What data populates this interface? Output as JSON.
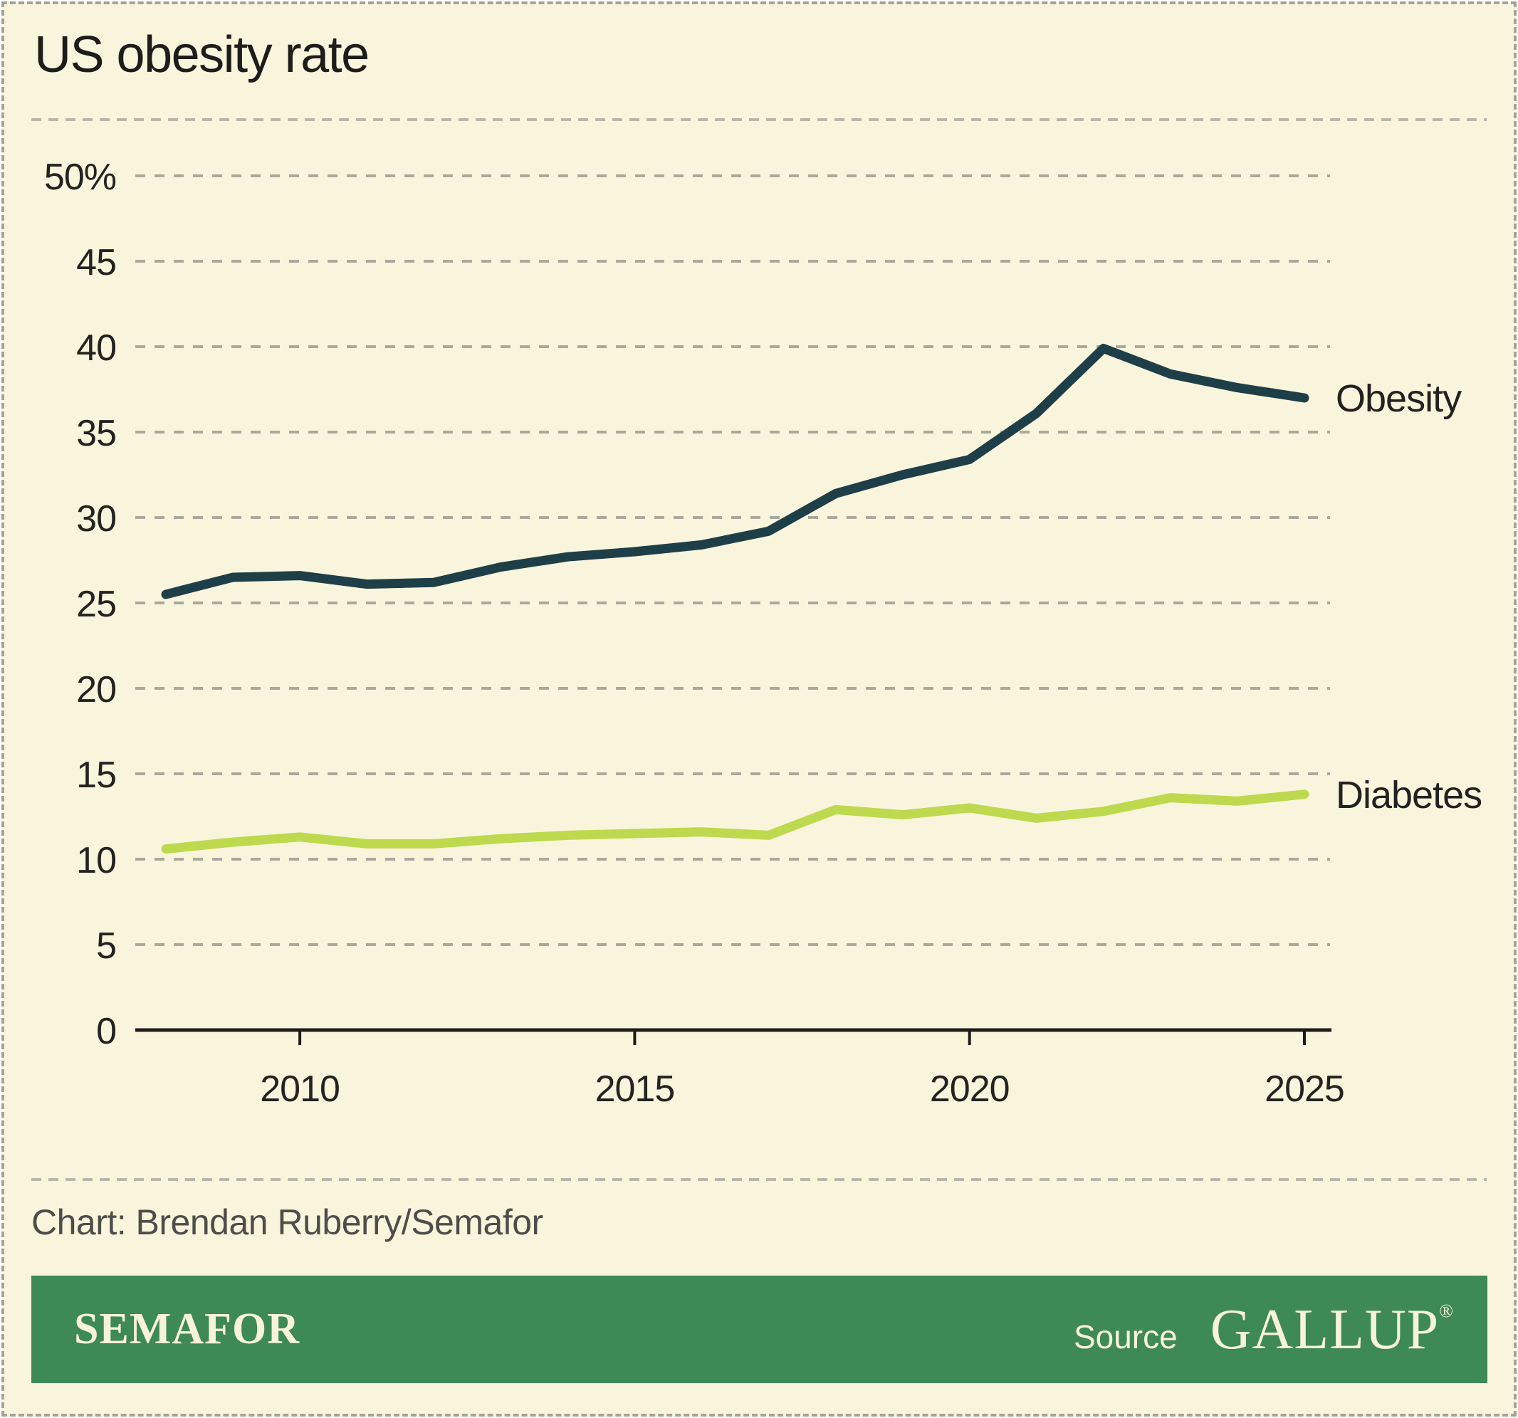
{
  "title": "US obesity rate",
  "credit": "Chart: Brendan Ruberry/Semafor",
  "footer": {
    "brand": "SEMAFOR",
    "source_label": "Source",
    "source_name": "GALLUP",
    "registered_mark": "®"
  },
  "colors": {
    "background": "#f9f5dc",
    "page_border": "#a3a398",
    "title_text": "#1d1d1b",
    "credit_text": "#4d4d4a",
    "footer_bar": "#3d8a56",
    "footer_text": "#f7f2da",
    "axis": "#1c1c1c",
    "tick_text": "#232321",
    "grid": "#a9a99d",
    "separator": "#b7b7ab",
    "series_label_text": "#222220",
    "obesity_line": "#1f3f48",
    "diabetes_line": "#bdd94e"
  },
  "chart_data": {
    "type": "line",
    "title": "US obesity rate",
    "x": [
      2008,
      2009,
      2010,
      2011,
      2012,
      2013,
      2014,
      2015,
      2016,
      2017,
      2018,
      2019,
      2020,
      2021,
      2022,
      2023,
      2024,
      2025
    ],
    "series": [
      {
        "name": "Obesity",
        "color": "#1f3f48",
        "values": [
          25.5,
          26.5,
          26.6,
          26.1,
          26.2,
          27.1,
          27.7,
          28.0,
          28.4,
          29.2,
          31.4,
          32.5,
          33.4,
          36.1,
          39.9,
          38.4,
          37.6,
          37.0
        ]
      },
      {
        "name": "Diabetes",
        "color": "#bdd94e",
        "values": [
          10.6,
          11.0,
          11.3,
          10.9,
          10.9,
          11.2,
          11.4,
          11.5,
          11.6,
          11.4,
          12.9,
          12.6,
          13.0,
          12.4,
          12.8,
          13.6,
          13.4,
          13.8
        ]
      }
    ],
    "ylim": [
      0,
      50
    ],
    "yticks": [
      0,
      5,
      10,
      15,
      20,
      25,
      30,
      35,
      40,
      45,
      50
    ],
    "ytick_labels": [
      "0",
      "5",
      "10",
      "15",
      "20",
      "25",
      "30",
      "35",
      "40",
      "45",
      "50%"
    ],
    "xticks": [
      2010,
      2015,
      2020,
      2025
    ],
    "grid": "horizontal-dashed",
    "legend": "direct-labels-at-line-end"
  }
}
